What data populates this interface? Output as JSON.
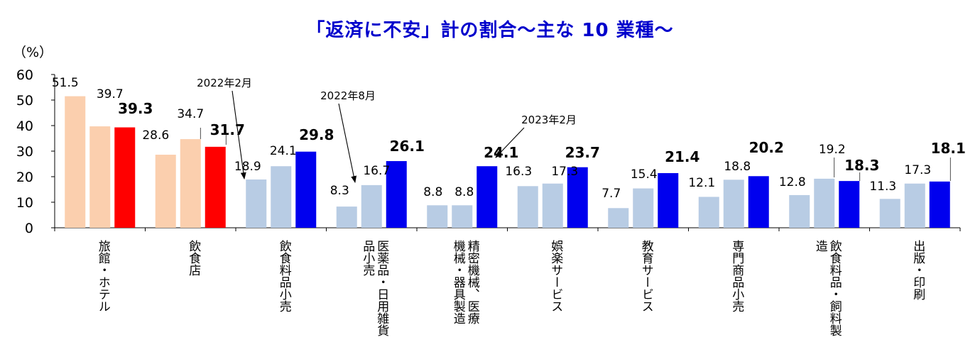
{
  "title": "「返済に不安」計の割合～主な 10 業種～",
  "chart_data": {
    "type": "bar",
    "unit_label": "（%）",
    "ylim": [
      0,
      60
    ],
    "yticks": [
      "0",
      "10",
      "20",
      "30",
      "40",
      "50",
      "60"
    ],
    "categories": [
      [
        "旅館・ホテル"
      ],
      [
        "飲食店"
      ],
      [
        "飲食料品小売"
      ],
      [
        "医薬品・日用雑貨",
        "品小売"
      ],
      [
        "精密機械、医療",
        "機械・器具製造"
      ],
      [
        "娯楽サービス"
      ],
      [
        "教育サービス"
      ],
      [
        "専門商品小売"
      ],
      [
        "飲食料品・飼料製",
        "造"
      ],
      [
        "出版・印刷"
      ]
    ],
    "series": [
      {
        "name": "2022年2月",
        "values": [
          51.5,
          28.6,
          18.9,
          8.3,
          8.8,
          16.3,
          7.7,
          12.1,
          12.8,
          11.3
        ],
        "labels": [
          "51.5",
          "28.6",
          "18.9",
          "8.3",
          "8.8",
          "16.3",
          "7.7",
          "12.1",
          "12.8",
          "11.3"
        ]
      },
      {
        "name": "2022年8月",
        "values": [
          39.7,
          34.7,
          24.1,
          16.7,
          8.8,
          17.3,
          15.4,
          18.8,
          19.2,
          17.3
        ],
        "labels": [
          "39.7",
          "34.7",
          "24.1",
          "16.7",
          "8.8",
          "17.3",
          "15.4",
          "18.8",
          "19.2",
          "17.3"
        ]
      },
      {
        "name": "2023年2月",
        "values": [
          39.3,
          31.7,
          29.8,
          26.1,
          24.1,
          23.7,
          21.4,
          20.2,
          18.3,
          18.1
        ],
        "labels": [
          "39.3",
          "31.7",
          "29.8",
          "26.1",
          "24.1",
          "23.7",
          "21.4",
          "20.2",
          "18.3",
          "18.1"
        ]
      }
    ],
    "colors": {
      "highlight_old": "#fbcfae",
      "highlight_new": "#ff0000",
      "normal_old": "#b8cce4",
      "normal_new": "#0000ee"
    },
    "grid": false
  }
}
